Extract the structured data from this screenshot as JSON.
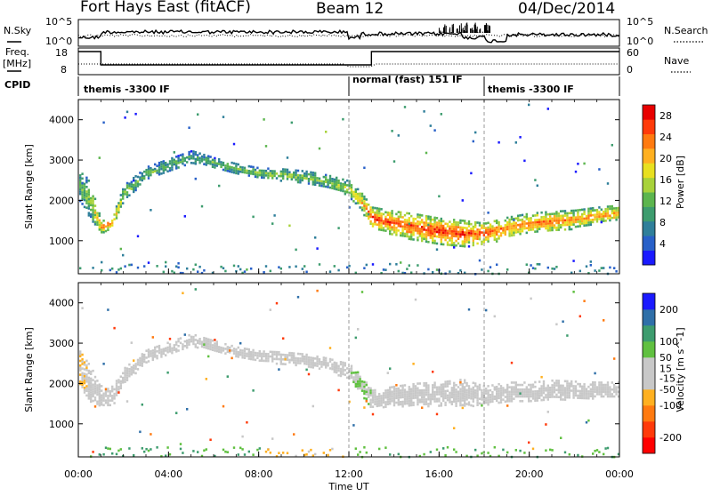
{
  "header": {
    "title": "Fort Hays East (fitACF)",
    "beam": "Beam 12",
    "date": "04/Dec/2014"
  },
  "top_panels": {
    "nsky_label": "N.Sky",
    "nsearch_label": "N.Search",
    "nsky_ticks": [
      "10^5",
      "10^0"
    ],
    "nsearch_ticks": [
      "10^5",
      "10^0"
    ],
    "freq_label": "Freq.",
    "freq_unit": "[MHz]",
    "freq_ticks": [
      "18",
      "8"
    ],
    "nave_label": "Nave",
    "nave_ticks": [
      "60",
      "0"
    ],
    "cpid_label": "CPID",
    "cpid_segments": [
      {
        "label": "themis -3300 IF",
        "start_hour": 0,
        "end_hour": 12
      },
      {
        "label": "normal (fast) 151 IF",
        "start_hour": 12,
        "end_hour": 18
      },
      {
        "label": "themis -3300 IF",
        "start_hour": 18,
        "end_hour": 24
      }
    ]
  },
  "chart_data": [
    {
      "type": "heatmap",
      "quantity": "Power",
      "ylabel": "Slant Range [km]",
      "xlim_hours": [
        0,
        24
      ],
      "ylim_km": [
        180,
        4500
      ],
      "y_ticks": [
        1000,
        2000,
        3000,
        4000
      ],
      "colorbar": {
        "label": "Power [dB]",
        "ticks": [
          4,
          8,
          12,
          16,
          20,
          24,
          28
        ],
        "range": [
          0,
          30
        ],
        "colors": [
          "#1a1aff",
          "#2860c8",
          "#2f7f9a",
          "#3d9c6e",
          "#5cb54e",
          "#a8d23a",
          "#e8e020",
          "#ffb020",
          "#ff7a10",
          "#ff3a0a",
          "#e80000"
        ]
      },
      "echo_band": {
        "hours": [
          0,
          0.5,
          1,
          1.5,
          2,
          3,
          4,
          5,
          6,
          7,
          8,
          9,
          10,
          11,
          12,
          12.5,
          13,
          14,
          15,
          16,
          17,
          18,
          19,
          20,
          21,
          22,
          23,
          24
        ],
        "center_km": [
          2400,
          2000,
          1350,
          1500,
          2200,
          2700,
          2900,
          3100,
          2950,
          2800,
          2700,
          2650,
          2600,
          2500,
          2300,
          2000,
          1600,
          1450,
          1350,
          1250,
          1200,
          1200,
          1350,
          1450,
          1500,
          1550,
          1650,
          1700
        ],
        "width_km": [
          900,
          900,
          300,
          300,
          400,
          300,
          300,
          300,
          250,
          250,
          250,
          300,
          300,
          300,
          400,
          450,
          500,
          600,
          650,
          650,
          650,
          500,
          500,
          500,
          500,
          450,
          400,
          400
        ],
        "power_db": [
          12,
          14,
          24,
          22,
          14,
          12,
          12,
          10,
          12,
          12,
          14,
          14,
          14,
          14,
          16,
          20,
          26,
          26,
          26,
          27,
          27,
          26,
          24,
          24,
          24,
          22,
          22,
          22
        ]
      }
    },
    {
      "type": "heatmap",
      "quantity": "Velocity",
      "ylabel": "Slant Range [km]",
      "xlim_hours": [
        0,
        24
      ],
      "ylim_km": [
        180,
        4500
      ],
      "y_ticks": [
        1000,
        2000,
        3000,
        4000
      ],
      "colorbar": {
        "label": "Velocity [m s^-1]",
        "ticks": [
          200,
          100,
          50,
          15,
          -15,
          -50,
          -100,
          -200
        ],
        "range": [
          -250,
          250
        ],
        "colors": [
          "#ff0000",
          "#ff3a0a",
          "#ff7a10",
          "#ffb020",
          "#c8c8c8",
          "#c8c8c8",
          "#60c040",
          "#3d9c6e",
          "#2f6fa8",
          "#1a1aff"
        ]
      },
      "echo_band": {
        "hours": [
          0,
          0.5,
          1,
          1.5,
          2,
          3,
          4,
          5,
          6,
          7,
          8,
          9,
          10,
          11,
          12,
          12.5,
          13,
          14,
          15,
          16,
          17,
          18,
          19,
          20,
          21,
          22,
          23,
          24
        ],
        "center_km": [
          2400,
          2000,
          1700,
          1700,
          2200,
          2700,
          2900,
          3100,
          2950,
          2800,
          2700,
          2650,
          2600,
          2500,
          2300,
          2000,
          1600,
          1700,
          1750,
          1750,
          1800,
          1700,
          1800,
          1800,
          1850,
          1850,
          1850,
          1850
        ],
        "width_km": [
          900,
          900,
          500,
          500,
          400,
          300,
          300,
          300,
          250,
          250,
          250,
          300,
          300,
          300,
          400,
          450,
          500,
          500,
          550,
          600,
          650,
          500,
          500,
          500,
          500,
          450,
          400,
          400
        ],
        "velocity_ms": [
          -60,
          -30,
          -20,
          -20,
          -10,
          -10,
          -5,
          0,
          0,
          0,
          0,
          0,
          0,
          5,
          40,
          60,
          40,
          0,
          0,
          -5,
          -5,
          0,
          0,
          0,
          0,
          0,
          -10,
          -20
        ]
      }
    }
  ],
  "x_axis": {
    "label": "Time UT",
    "ticks": [
      "00:00",
      "04:00",
      "08:00",
      "12:00",
      "16:00",
      "20:00",
      "00:00"
    ]
  }
}
